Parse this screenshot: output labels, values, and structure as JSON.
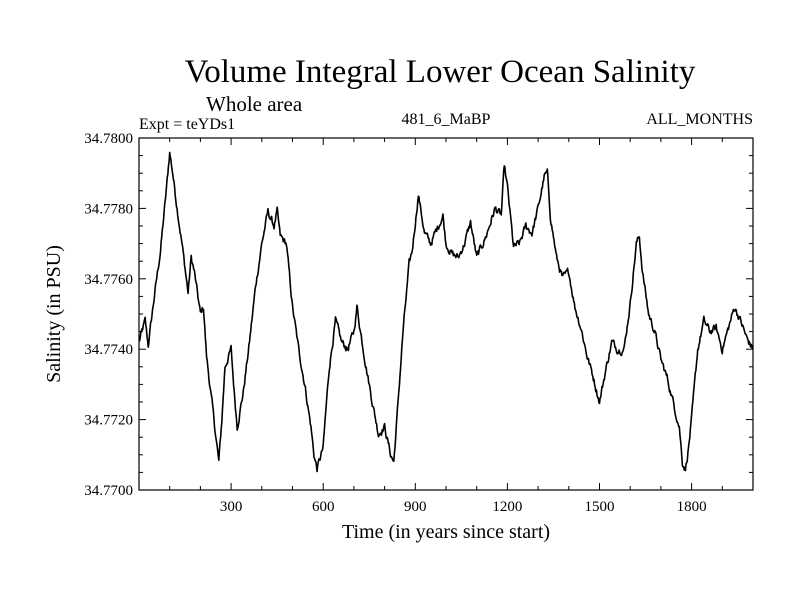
{
  "chart_data": {
    "type": "line",
    "title": "Volume Integral Lower Ocean Salinity",
    "subtitle": "Whole area",
    "experiment_label": "Expt = teYDs1",
    "run_label": "481_6_MaBP",
    "months_label": "ALL_MONTHS",
    "xlabel": "Time (in years since start)",
    "ylabel": "Salinity (in PSU)",
    "xlim": [
      0,
      2000
    ],
    "ylim": [
      34.77,
      34.78
    ],
    "x_ticks": [
      300,
      600,
      900,
      1200,
      1500,
      1800
    ],
    "x_tick_labels": [
      "300",
      "600",
      "900",
      "1200",
      "1500",
      "1800"
    ],
    "y_ticks": [
      34.77,
      34.772,
      34.774,
      34.776,
      34.778,
      34.78
    ],
    "y_tick_labels": [
      "34.7700",
      "34.7720",
      "34.7740",
      "34.7760",
      "34.7780",
      "34.7800"
    ],
    "grid": false,
    "series": [
      {
        "name": "Salinity",
        "color": "#000000",
        "x": [
          0,
          20,
          30,
          50,
          70,
          90,
          100,
          110,
          120,
          140,
          160,
          170,
          180,
          200,
          210,
          220,
          240,
          260,
          270,
          280,
          300,
          310,
          320,
          340,
          360,
          380,
          400,
          420,
          440,
          450,
          460,
          480,
          500,
          520,
          540,
          560,
          570,
          580,
          600,
          610,
          620,
          640,
          660,
          680,
          700,
          710,
          720,
          740,
          760,
          780,
          800,
          820,
          830,
          840,
          860,
          880,
          890,
          910,
          930,
          950,
          970,
          990,
          1000,
          1020,
          1040,
          1060,
          1080,
          1100,
          1130,
          1160,
          1180,
          1190,
          1200,
          1220,
          1240,
          1260,
          1280,
          1300,
          1320,
          1330,
          1340,
          1360,
          1380,
          1400,
          1420,
          1440,
          1460,
          1480,
          1500,
          1520,
          1540,
          1560,
          1580,
          1600,
          1620,
          1630,
          1640,
          1660,
          1680,
          1700,
          1720,
          1740,
          1760,
          1770,
          1780,
          1790,
          1800,
          1820,
          1840,
          1860,
          1880,
          1900,
          1920,
          1940,
          1960,
          1980,
          2000
        ],
        "y": [
          34.7742,
          34.7748,
          34.7741,
          34.7755,
          34.7768,
          34.7786,
          34.7796,
          34.779,
          34.7783,
          34.777,
          34.7756,
          34.7766,
          34.7762,
          34.775,
          34.7752,
          34.7738,
          34.7723,
          34.7708,
          34.772,
          34.7735,
          34.774,
          34.7728,
          34.7718,
          34.7728,
          34.7742,
          34.7758,
          34.777,
          34.7779,
          34.7775,
          34.7779,
          34.7772,
          34.777,
          34.7752,
          34.774,
          34.773,
          34.7718,
          34.771,
          34.7706,
          34.7712,
          34.7724,
          34.7735,
          34.7748,
          34.7742,
          34.774,
          34.7745,
          34.7752,
          34.7746,
          34.7735,
          34.7725,
          34.7716,
          34.7718,
          34.771,
          34.7708,
          34.772,
          34.7745,
          34.7764,
          34.7768,
          34.7784,
          34.7773,
          34.777,
          34.7774,
          34.7778,
          34.777,
          34.7767,
          34.7766,
          34.777,
          34.7776,
          34.7766,
          34.7772,
          34.778,
          34.7778,
          34.7792,
          34.7786,
          34.7769,
          34.777,
          34.7775,
          34.7773,
          34.778,
          34.7789,
          34.779,
          34.7778,
          34.7766,
          34.776,
          34.7762,
          34.7752,
          34.7746,
          34.7738,
          34.7732,
          34.7725,
          34.7734,
          34.7742,
          34.774,
          34.774,
          34.7753,
          34.777,
          34.7772,
          34.7762,
          34.775,
          34.7745,
          34.7737,
          34.7732,
          34.7725,
          34.7718,
          34.7708,
          34.7706,
          34.7712,
          34.772,
          34.774,
          34.7748,
          34.7745,
          34.7746,
          34.774,
          34.7746,
          34.7752,
          34.7748,
          34.7743,
          34.774
        ]
      }
    ]
  }
}
